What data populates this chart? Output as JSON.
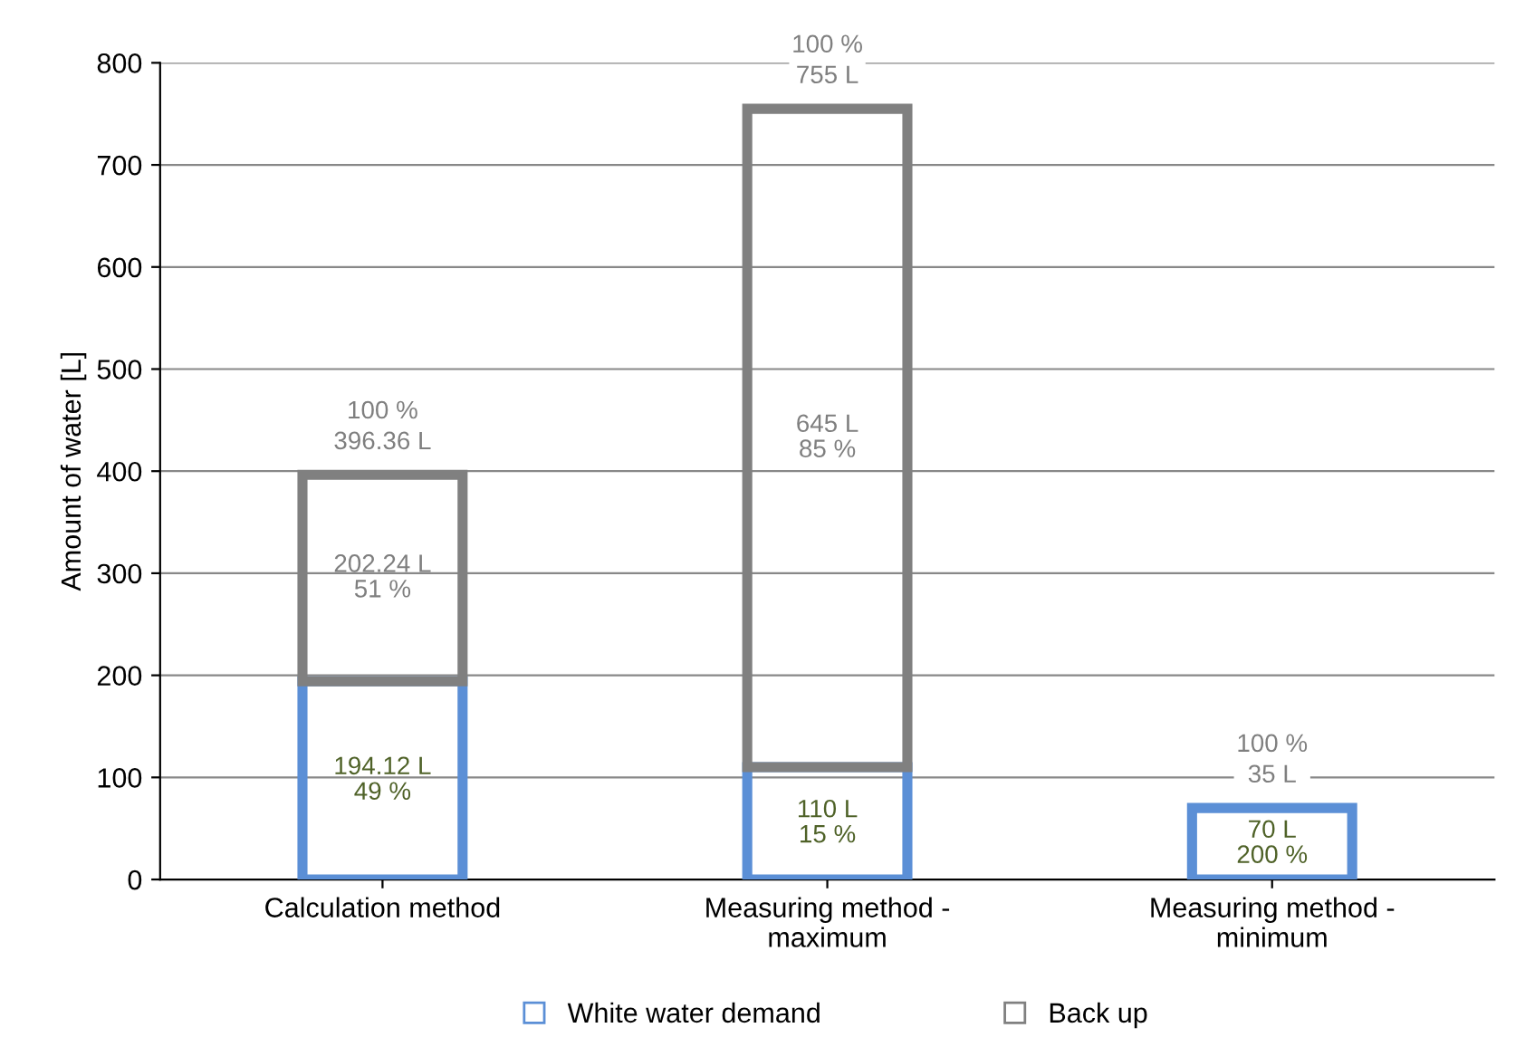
{
  "chart_data": {
    "type": "bar",
    "stacked": true,
    "ylabel": "Amount of water [L]",
    "categories": [
      "Calculation method",
      "Measuring method -\nmaximum",
      "Measuring method -\nminimum"
    ],
    "series": [
      {
        "name": "White water demand",
        "color": "#5b8fd6",
        "values": [
          194.12,
          110,
          70
        ],
        "value_labels": [
          "194.12 L\n49 %",
          "110 L\n15 %",
          "70 L\n200 %"
        ]
      },
      {
        "name": "Back up",
        "color": "#808080",
        "values": [
          202.24,
          645,
          null
        ],
        "value_labels": [
          "202.24 L\n51 %",
          "645 L\n85 %",
          null
        ]
      }
    ],
    "totals": [
      "100 %\n396.36 L",
      "100 %\n755 L",
      "100 %\n35 L"
    ],
    "ylim": [
      0,
      800
    ],
    "yticks": [
      0,
      100,
      200,
      300,
      400,
      500,
      600,
      700,
      800
    ],
    "grid": "y",
    "legend": "bottom"
  }
}
